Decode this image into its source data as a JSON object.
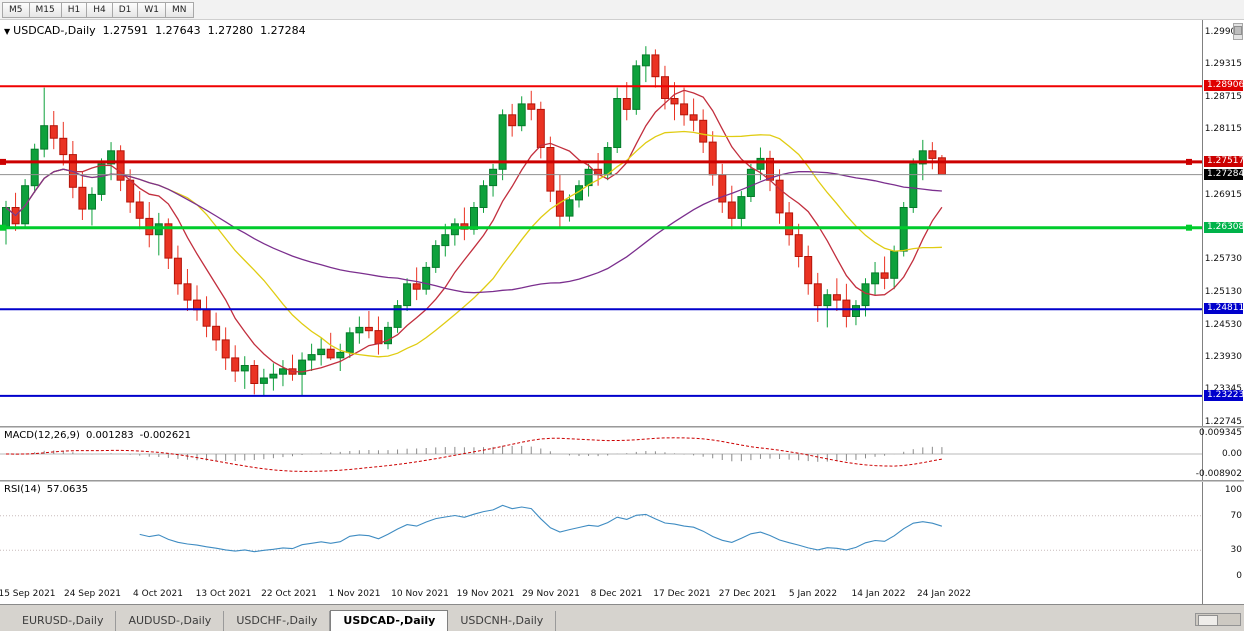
{
  "toolbar": {
    "timeframes": [
      "M5",
      "M15",
      "H1",
      "H4",
      "D1",
      "W1",
      "MN"
    ]
  },
  "chart_header": {
    "symbol_title": "USDCAD-,Daily",
    "open": "1.27591",
    "high": "1.27643",
    "low": "1.27280",
    "close": "1.27284"
  },
  "chart_data": {
    "type": "candlestick",
    "symbol": "USDCAD",
    "timeframe": "Daily",
    "title": "USDCAD-,Daily 1.27591 1.27643 1.27280 1.27284",
    "ylim": [
      1.2267,
      1.3012
    ],
    "grid": false,
    "colors": {
      "up": "#0ea13c",
      "up_border": "#067a2a",
      "down": "#ea3323",
      "down_border": "#b31409",
      "current_price_line": "#909090"
    },
    "candles": [
      [
        1.2632,
        1.268,
        1.26,
        1.2668
      ],
      [
        1.2668,
        1.2695,
        1.2625,
        1.2638
      ],
      [
        1.2638,
        1.272,
        1.263,
        1.2708
      ],
      [
        1.2708,
        1.2785,
        1.2695,
        1.2775
      ],
      [
        1.2775,
        1.2888,
        1.276,
        1.2818
      ],
      [
        1.2818,
        1.2845,
        1.2775,
        1.2795
      ],
      [
        1.2795,
        1.2825,
        1.2745,
        1.2765
      ],
      [
        1.2765,
        1.279,
        1.2685,
        1.2705
      ],
      [
        1.2705,
        1.2735,
        1.2645,
        1.2665
      ],
      [
        1.2665,
        1.2705,
        1.2635,
        1.2692
      ],
      [
        1.2692,
        1.2758,
        1.268,
        1.2748
      ],
      [
        1.2748,
        1.2788,
        1.2718,
        1.2772
      ],
      [
        1.2772,
        1.2782,
        1.2698,
        1.2718
      ],
      [
        1.2718,
        1.2738,
        1.2658,
        1.2678
      ],
      [
        1.2678,
        1.2698,
        1.2628,
        1.2648
      ],
      [
        1.2648,
        1.2678,
        1.2595,
        1.2618
      ],
      [
        1.2618,
        1.2658,
        1.258,
        1.2638
      ],
      [
        1.2638,
        1.2648,
        1.2555,
        1.2575
      ],
      [
        1.2575,
        1.2598,
        1.2508,
        1.2528
      ],
      [
        1.2528,
        1.2555,
        1.2478,
        1.2498
      ],
      [
        1.2498,
        1.2525,
        1.246,
        1.248
      ],
      [
        1.248,
        1.2505,
        1.243,
        1.245
      ],
      [
        1.245,
        1.2475,
        1.2405,
        1.2425
      ],
      [
        1.2425,
        1.2448,
        1.237,
        1.2392
      ],
      [
        1.2392,
        1.2415,
        1.2348,
        1.2368
      ],
      [
        1.2368,
        1.2395,
        1.2335,
        1.2378
      ],
      [
        1.2378,
        1.2388,
        1.2325,
        1.2345
      ],
      [
        1.2345,
        1.2372,
        1.2323,
        1.2355
      ],
      [
        1.2355,
        1.2382,
        1.2332,
        1.2362
      ],
      [
        1.2362,
        1.2388,
        1.234,
        1.2372
      ],
      [
        1.2372,
        1.2398,
        1.235,
        1.2362
      ],
      [
        1.2362,
        1.2402,
        1.2322,
        1.2388
      ],
      [
        1.2388,
        1.2418,
        1.2368,
        1.2398
      ],
      [
        1.2398,
        1.2428,
        1.2378,
        1.2408
      ],
      [
        1.2408,
        1.2438,
        1.2388,
        1.2392
      ],
      [
        1.2392,
        1.2418,
        1.2368,
        1.2402
      ],
      [
        1.2402,
        1.2448,
        1.2392,
        1.2438
      ],
      [
        1.2438,
        1.2468,
        1.2418,
        1.2448
      ],
      [
        1.2448,
        1.2478,
        1.2428,
        1.2442
      ],
      [
        1.2442,
        1.2468,
        1.2398,
        1.2418
      ],
      [
        1.2418,
        1.2458,
        1.2408,
        1.2448
      ],
      [
        1.2448,
        1.2498,
        1.2438,
        1.2488
      ],
      [
        1.2488,
        1.2538,
        1.2478,
        1.2528
      ],
      [
        1.2528,
        1.2558,
        1.2498,
        1.2518
      ],
      [
        1.2518,
        1.2568,
        1.2508,
        1.2558
      ],
      [
        1.2558,
        1.2608,
        1.2548,
        1.2598
      ],
      [
        1.2598,
        1.2638,
        1.2578,
        1.2618
      ],
      [
        1.2618,
        1.2648,
        1.2598,
        1.2638
      ],
      [
        1.2638,
        1.2668,
        1.2608,
        1.2628
      ],
      [
        1.2628,
        1.2678,
        1.2618,
        1.2668
      ],
      [
        1.2668,
        1.2718,
        1.2658,
        1.2708
      ],
      [
        1.2708,
        1.2748,
        1.2688,
        1.2738
      ],
      [
        1.2738,
        1.2848,
        1.2718,
        1.2838
      ],
      [
        1.2838,
        1.2858,
        1.2798,
        1.2818
      ],
      [
        1.2818,
        1.2872,
        1.2808,
        1.2858
      ],
      [
        1.2858,
        1.2882,
        1.2828,
        1.2848
      ],
      [
        1.2848,
        1.2862,
        1.2758,
        1.2778
      ],
      [
        1.2778,
        1.2798,
        1.2678,
        1.2698
      ],
      [
        1.2698,
        1.2728,
        1.2632,
        1.2652
      ],
      [
        1.2652,
        1.2692,
        1.2642,
        1.2682
      ],
      [
        1.2682,
        1.2718,
        1.2668,
        1.2708
      ],
      [
        1.2708,
        1.2748,
        1.2688,
        1.2738
      ],
      [
        1.2738,
        1.2768,
        1.2708,
        1.2728
      ],
      [
        1.2728,
        1.2788,
        1.2718,
        1.2778
      ],
      [
        1.2778,
        1.2888,
        1.2768,
        1.2868
      ],
      [
        1.2868,
        1.2898,
        1.2828,
        1.2848
      ],
      [
        1.2848,
        1.2938,
        1.2838,
        1.2928
      ],
      [
        1.2928,
        1.2964,
        1.2898,
        1.2948
      ],
      [
        1.2948,
        1.2958,
        1.2888,
        1.2908
      ],
      [
        1.2908,
        1.2928,
        1.2848,
        1.2868
      ],
      [
        1.2868,
        1.2898,
        1.2828,
        1.2858
      ],
      [
        1.2858,
        1.2888,
        1.2818,
        1.2838
      ],
      [
        1.2838,
        1.2868,
        1.2808,
        1.2828
      ],
      [
        1.2828,
        1.2848,
        1.2768,
        1.2788
      ],
      [
        1.2788,
        1.2808,
        1.2708,
        1.2728
      ],
      [
        1.2728,
        1.2748,
        1.2658,
        1.2678
      ],
      [
        1.2678,
        1.2708,
        1.2628,
        1.2648
      ],
      [
        1.2648,
        1.2698,
        1.2632,
        1.2688
      ],
      [
        1.2688,
        1.2748,
        1.2678,
        1.2738
      ],
      [
        1.2738,
        1.2778,
        1.2718,
        1.2758
      ],
      [
        1.2758,
        1.2772,
        1.2698,
        1.2718
      ],
      [
        1.2718,
        1.2738,
        1.2638,
        1.2658
      ],
      [
        1.2658,
        1.2678,
        1.2598,
        1.2618
      ],
      [
        1.2618,
        1.2638,
        1.2558,
        1.2578
      ],
      [
        1.2578,
        1.2598,
        1.2508,
        1.2528
      ],
      [
        1.2528,
        1.2548,
        1.2458,
        1.2488
      ],
      [
        1.2488,
        1.2518,
        1.2448,
        1.2508
      ],
      [
        1.2508,
        1.2538,
        1.2478,
        1.2498
      ],
      [
        1.2498,
        1.2528,
        1.2448,
        1.2468
      ],
      [
        1.2468,
        1.2498,
        1.2452,
        1.2488
      ],
      [
        1.2488,
        1.2538,
        1.2468,
        1.2528
      ],
      [
        1.2528,
        1.2568,
        1.2508,
        1.2548
      ],
      [
        1.2548,
        1.2578,
        1.2518,
        1.2538
      ],
      [
        1.2538,
        1.2598,
        1.2518,
        1.2588
      ],
      [
        1.2588,
        1.2678,
        1.2578,
        1.2668
      ],
      [
        1.2668,
        1.2758,
        1.2658,
        1.2748
      ],
      [
        1.2748,
        1.2792,
        1.2718,
        1.2772
      ],
      [
        1.2772,
        1.2788,
        1.2738,
        1.2758
      ],
      [
        1.27591,
        1.27643,
        1.2728,
        1.27284
      ]
    ],
    "moving_averages": [
      {
        "period": 8,
        "color": "#c22f3e"
      },
      {
        "period": 18,
        "color": "#e0cc12"
      },
      {
        "period": 42,
        "color": "#7b2f8e"
      }
    ],
    "hlines": [
      {
        "price": 1.28906,
        "color": "#f00000",
        "label_bg": "#e00000",
        "width": 2,
        "end_markers": false
      },
      {
        "price": 1.27517,
        "color": "#cc0000",
        "label_bg": "#cc0000",
        "width": 3,
        "end_markers": true
      },
      {
        "price": 1.26308,
        "color": "#00cc2c",
        "label_bg": "#00b34a",
        "width": 3,
        "end_markers": true
      },
      {
        "price": 1.24811,
        "color": "#0000cc",
        "label_bg": "#0000cc",
        "width": 2,
        "end_markers": false
      },
      {
        "price": 1.23223,
        "color": "#0000cc",
        "label_bg": "#0000cc",
        "width": 2,
        "end_markers": false
      }
    ],
    "current_price": {
      "value": 1.27284,
      "label_bg": "#000000"
    },
    "price_axis_ticks": [
      1.299,
      1.29315,
      1.28715,
      1.28115,
      1.26915,
      1.2573,
      1.2513,
      1.2453,
      1.2393,
      1.23345,
      1.22745
    ],
    "date_labels": [
      "15 Sep 2021",
      "24 Sep 2021",
      "4 Oct 2021",
      "13 Oct 2021",
      "22 Oct 2021",
      "1 Nov 2021",
      "10 Nov 2021",
      "19 Nov 2021",
      "29 Nov 2021",
      "8 Dec 2021",
      "17 Dec 2021",
      "27 Dec 2021",
      "5 Jan 2022",
      "14 Jan 2022",
      "24 Jan 2022"
    ],
    "indicators": {
      "macd": {
        "label": "MACD(12,26,9)",
        "values": [
          "0.001283",
          "-0.002621"
        ],
        "params": [
          12,
          26,
          9
        ],
        "axis_labels": [
          "0.009345",
          "0.00",
          "-0.008902"
        ],
        "ylim": [
          -0.0115,
          0.0115
        ],
        "line_color": "#cc0000",
        "histogram_color": "#8a8a8a"
      },
      "rsi": {
        "label": "RSI(14)",
        "value": "57.0635",
        "period": 14,
        "levels": [
          100,
          70,
          30,
          0
        ],
        "level_lines": [
          70,
          30
        ],
        "line_color": "#3f8cc2"
      }
    }
  },
  "tabs": {
    "items": [
      "EURUSD-,Daily",
      "AUDUSD-,Daily",
      "USDCHF-,Daily",
      "USDCAD-,Daily",
      "USDCNH-,Daily"
    ],
    "active": "USDCAD-,Daily"
  }
}
